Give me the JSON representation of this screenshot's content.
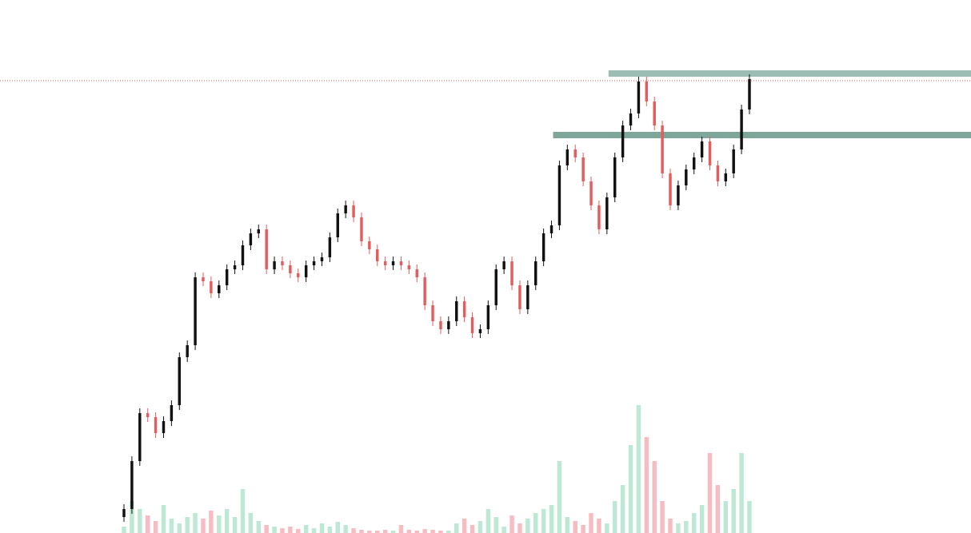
{
  "chart_data": {
    "type": "candlestick",
    "categories": [
      null,
      null,
      null,
      null,
      null,
      null,
      null,
      null,
      null,
      null,
      null,
      null,
      null,
      null,
      null,
      null,
      null,
      null,
      null,
      null,
      null,
      null,
      null,
      null,
      null,
      null,
      null,
      null,
      null,
      null,
      null,
      null,
      null,
      null,
      null,
      null,
      null,
      null,
      null,
      null,
      null,
      null,
      null,
      null,
      null,
      null,
      null,
      null,
      null,
      null,
      null,
      null,
      null,
      null,
      null,
      null,
      null,
      null,
      null,
      null,
      null,
      null,
      null,
      null,
      null,
      null,
      null,
      null,
      null,
      null,
      null,
      null,
      null,
      null,
      null,
      null,
      null,
      null,
      null,
      null
    ],
    "open": [
      20,
      30,
      90,
      150,
      145,
      125,
      140,
      160,
      220,
      235,
      320,
      315,
      300,
      310,
      330,
      335,
      360,
      375,
      380,
      330,
      340,
      335,
      325,
      320,
      335,
      340,
      345,
      370,
      400,
      410,
      395,
      365,
      355,
      340,
      335,
      340,
      335,
      330,
      320,
      285,
      265,
      255,
      265,
      290,
      270,
      250,
      255,
      285,
      330,
      340,
      310,
      280,
      310,
      340,
      375,
      385,
      460,
      480,
      470,
      440,
      410,
      380,
      420,
      470,
      510,
      525,
      565,
      540,
      510,
      450,
      410,
      435,
      455,
      470,
      490,
      460,
      440,
      450,
      480,
      530
    ],
    "high": [
      36,
      96,
      156,
      156,
      151,
      146,
      166,
      226,
      241,
      326,
      326,
      321,
      316,
      336,
      341,
      366,
      381,
      386,
      386,
      346,
      346,
      341,
      331,
      341,
      346,
      351,
      376,
      406,
      416,
      416,
      401,
      371,
      361,
      346,
      346,
      346,
      341,
      336,
      326,
      291,
      271,
      271,
      296,
      296,
      276,
      261,
      291,
      336,
      346,
      346,
      316,
      316,
      346,
      381,
      391,
      466,
      486,
      486,
      476,
      446,
      416,
      426,
      476,
      516,
      531,
      571,
      571,
      546,
      516,
      456,
      441,
      461,
      476,
      496,
      496,
      466,
      456,
      486,
      536,
      574
    ],
    "low": [
      14,
      24,
      84,
      139,
      119,
      119,
      134,
      154,
      214,
      229,
      309,
      294,
      294,
      304,
      324,
      329,
      354,
      369,
      324,
      324,
      329,
      319,
      314,
      314,
      329,
      334,
      339,
      364,
      394,
      389,
      359,
      349,
      334,
      329,
      329,
      329,
      324,
      314,
      279,
      259,
      249,
      249,
      259,
      264,
      244,
      244,
      249,
      279,
      324,
      304,
      274,
      274,
      304,
      334,
      369,
      379,
      454,
      464,
      434,
      404,
      374,
      374,
      414,
      464,
      504,
      519,
      534,
      504,
      444,
      404,
      404,
      429,
      449,
      464,
      454,
      434,
      434,
      444,
      474,
      524
    ],
    "close": [
      30,
      90,
      150,
      145,
      125,
      140,
      160,
      220,
      235,
      320,
      315,
      300,
      310,
      330,
      335,
      360,
      375,
      380,
      330,
      340,
      335,
      325,
      320,
      335,
      340,
      345,
      370,
      400,
      410,
      395,
      365,
      355,
      340,
      335,
      340,
      335,
      330,
      320,
      285,
      265,
      255,
      265,
      290,
      270,
      250,
      255,
      285,
      330,
      340,
      310,
      280,
      310,
      340,
      375,
      385,
      460,
      480,
      470,
      440,
      410,
      380,
      420,
      470,
      510,
      525,
      565,
      540,
      510,
      450,
      410,
      435,
      455,
      470,
      490,
      460,
      440,
      450,
      480,
      530,
      568
    ],
    "up_color": "#111111",
    "down_color": "#e35d5d",
    "ylim": [
      0,
      667
    ],
    "volume": {
      "axis": "y2",
      "values": [
        8,
        40,
        30,
        22,
        15,
        35,
        18,
        12,
        20,
        25,
        18,
        28,
        22,
        30,
        20,
        55,
        25,
        15,
        10,
        8,
        6,
        8,
        5,
        10,
        6,
        12,
        8,
        14,
        10,
        6,
        4,
        3,
        3,
        4,
        3,
        10,
        4,
        3,
        5,
        4,
        3,
        3,
        12,
        18,
        10,
        15,
        30,
        20,
        8,
        22,
        12,
        18,
        25,
        30,
        35,
        90,
        20,
        15,
        10,
        25,
        18,
        12,
        40,
        60,
        110,
        160,
        120,
        90,
        40,
        18,
        12,
        15,
        25,
        35,
        100,
        60,
        40,
        55,
        100,
        40
      ],
      "up_color": "#bde8d3",
      "down_color": "#f7bcc2"
    },
    "y2lim": [
      0,
      667
    ],
    "levels": [
      {
        "value": 575,
        "start": 62,
        "color": "#9bbdb4"
      },
      {
        "value": 498,
        "start": 55,
        "color": "#7fa69b"
      }
    ],
    "price_line": {
      "value": 566,
      "color": "#e35d5d"
    }
  }
}
